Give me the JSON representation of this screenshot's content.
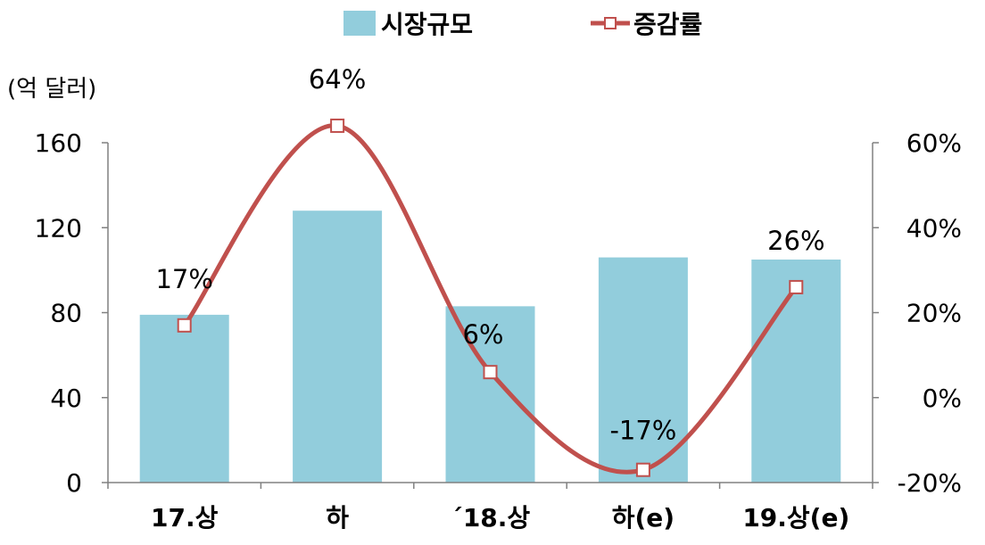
{
  "chart_data": {
    "type": "bar",
    "categories": [
      "17.상",
      "하",
      "´18.상",
      "하(e)",
      "19.상(e)"
    ],
    "series": [
      {
        "name": "시장규모",
        "type": "bar",
        "axis": "left",
        "values": [
          79,
          128,
          83,
          106,
          105
        ],
        "color": "#92CDDC"
      },
      {
        "name": "증감률",
        "type": "line",
        "axis": "right",
        "values": [
          17,
          64,
          6,
          -17,
          26
        ],
        "labels": [
          "17%",
          "64%",
          "6%",
          "-17%",
          "26%"
        ],
        "color": "#C0504D",
        "marker": "hollow-square"
      }
    ],
    "y_left": {
      "unit_label": "(억 달러)",
      "range": [
        0,
        160
      ],
      "ticks": [
        "0",
        "40",
        "80",
        "120",
        "160"
      ]
    },
    "y_right": {
      "range": [
        -20,
        60
      ],
      "ticks": [
        "-20%",
        "0%",
        "20%",
        "40%",
        "60%"
      ]
    },
    "legend": "top-center",
    "grid": false
  }
}
